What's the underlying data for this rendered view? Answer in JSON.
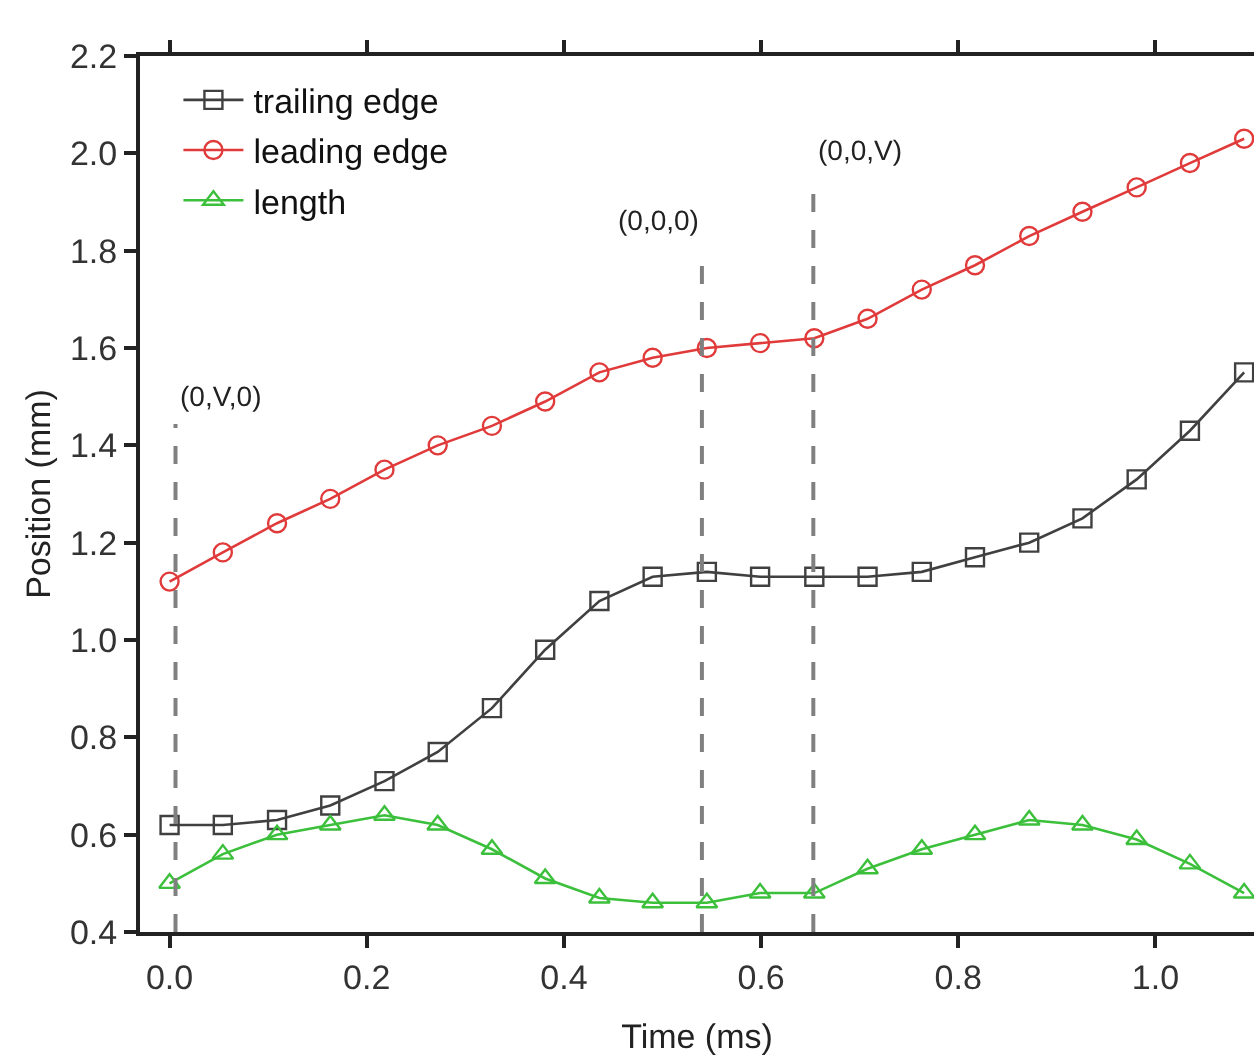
{
  "chart_data": {
    "type": "line",
    "xlabel": "Time (ms)",
    "ylabel": "Position (mm)",
    "x": [
      0,
      0.054,
      0.109,
      0.163,
      0.218,
      0.272,
      0.327,
      0.381,
      0.436,
      0.49,
      0.545,
      0.599,
      0.654,
      0.708,
      0.763,
      0.817,
      0.872,
      0.926,
      0.981,
      1.035,
      1.09
    ],
    "series": [
      {
        "name": "trailing edge",
        "color": "#404040",
        "marker": "square",
        "values": [
          0.62,
          0.62,
          0.63,
          0.66,
          0.71,
          0.77,
          0.86,
          0.98,
          1.08,
          1.13,
          1.14,
          1.13,
          1.13,
          1.13,
          1.14,
          1.17,
          1.2,
          1.25,
          1.33,
          1.43,
          1.55
        ]
      },
      {
        "name": "leading edge",
        "color": "#e03a3a",
        "marker": "circle",
        "values": [
          1.12,
          1.18,
          1.24,
          1.29,
          1.35,
          1.4,
          1.44,
          1.49,
          1.55,
          1.58,
          1.6,
          1.61,
          1.62,
          1.66,
          1.72,
          1.77,
          1.83,
          1.88,
          1.93,
          1.98,
          2.03
        ]
      },
      {
        "name": "length",
        "color": "#3cc03c",
        "marker": "triangle",
        "values": [
          0.5,
          0.56,
          0.6,
          0.62,
          0.64,
          0.62,
          0.57,
          0.51,
          0.47,
          0.46,
          0.46,
          0.48,
          0.48,
          0.53,
          0.57,
          0.6,
          0.63,
          0.62,
          0.59,
          0.54,
          0.48
        ]
      }
    ],
    "line_style": "solid",
    "xlim": [
      -0.03,
      1.1
    ],
    "xticks": [
      {
        "value": 0,
        "label": "0.0"
      },
      0.2,
      0.4,
      0.6,
      0.8,
      {
        "value": 1,
        "label": "1.0"
      }
    ],
    "ylim": [
      0.4,
      2.2
    ],
    "yticks": [
      0.4,
      0.6,
      0.8,
      {
        "value": 1,
        "label": "1.0"
      },
      1.2,
      1.4,
      1.6,
      1.8,
      {
        "value": 2,
        "label": "2.0"
      },
      2.2
    ],
    "ref_lines": [
      {
        "axis": "x",
        "value": 0.006,
        "label": "(0,V,0)",
        "color": "#808080",
        "line_style": "dashed"
      },
      {
        "axis": "x",
        "value": 0.54,
        "label": "(0,0,0)",
        "color": "#808080",
        "line_style": "dashed"
      },
      {
        "axis": "x",
        "value": 0.653,
        "label": "(0,0,V)",
        "color": "#808080",
        "line_style": "dashed"
      }
    ],
    "grid": false,
    "legend": "top left"
  }
}
